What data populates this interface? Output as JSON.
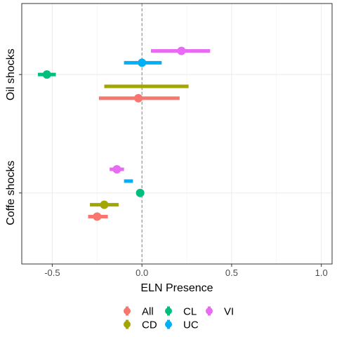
{
  "chart_data": {
    "type": "scatter",
    "subtype": "dot-and-whisker (estimates with confidence intervals), horizontal, dodged",
    "xlabel": "ELN Presence",
    "ylabel": "",
    "xlim": [
      -0.67,
      1.06
    ],
    "x_ticks": [
      -0.5,
      0.0,
      0.5,
      1.0
    ],
    "x_tick_labels": [
      "-0.5",
      "0.0",
      "0.5",
      "1.0"
    ],
    "categories": [
      "Coffe shocks",
      "Oil shocks"
    ],
    "reference_line": {
      "x": 0,
      "style": "dashed",
      "color": "#808080"
    },
    "grid": true,
    "legend_position": "bottom",
    "series": [
      {
        "name": "All",
        "color": "#F8766D",
        "points": [
          {
            "group": "Oil shocks",
            "estimate": -0.02,
            "low": -0.24,
            "high": 0.21
          },
          {
            "group": "Coffe shocks",
            "estimate": -0.25,
            "low": -0.3,
            "high": -0.19
          }
        ]
      },
      {
        "name": "CD",
        "color": "#A3A500",
        "points": [
          {
            "group": "Oil shocks",
            "estimate": null,
            "low": -0.21,
            "high": 0.26
          },
          {
            "group": "Coffe shocks",
            "estimate": -0.21,
            "low": -0.29,
            "high": -0.13
          }
        ]
      },
      {
        "name": "CL",
        "color": "#00BF7D",
        "points": [
          {
            "group": "Oil shocks",
            "estimate": -0.53,
            "low": -0.58,
            "high": -0.48
          },
          {
            "group": "Coffe shocks",
            "estimate": -0.01,
            "low": -0.01,
            "high": -0.01
          }
        ]
      },
      {
        "name": "UC",
        "color": "#00B0F6",
        "points": [
          {
            "group": "Oil shocks",
            "estimate": 0.0,
            "low": -0.1,
            "high": 0.11
          },
          {
            "group": "Coffe shocks",
            "estimate": null,
            "low": -0.1,
            "high": -0.05
          }
        ]
      },
      {
        "name": "VI",
        "color": "#E76BF3",
        "points": [
          {
            "group": "Oil shocks",
            "estimate": 0.22,
            "low": 0.05,
            "high": 0.38
          },
          {
            "group": "Coffe shocks",
            "estimate": -0.14,
            "low": -0.18,
            "high": -0.1
          }
        ]
      }
    ]
  }
}
